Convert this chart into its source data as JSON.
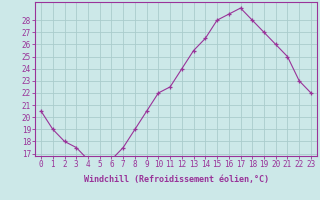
{
  "hours": [
    0,
    1,
    2,
    3,
    4,
    5,
    6,
    7,
    8,
    9,
    10,
    11,
    12,
    13,
    14,
    15,
    16,
    17,
    18,
    19,
    20,
    21,
    22,
    23
  ],
  "values": [
    20.5,
    19.0,
    18.0,
    17.5,
    16.5,
    16.5,
    16.5,
    17.5,
    19.0,
    20.5,
    22.0,
    22.5,
    24.0,
    25.5,
    26.5,
    28.0,
    28.5,
    29.0,
    28.0,
    27.0,
    26.0,
    25.0,
    23.0,
    22.0
  ],
  "line_color": "#993399",
  "marker": "+",
  "bg_color": "#cce8e8",
  "grid_color": "#aacccc",
  "xlabel": "Windchill (Refroidissement éolien,°C)",
  "ylim_min": 17,
  "ylim_max": 29,
  "xlim_min": 0,
  "xlim_max": 23,
  "yticks": [
    17,
    18,
    19,
    20,
    21,
    22,
    23,
    24,
    25,
    26,
    27,
    28
  ],
  "xticks": [
    0,
    1,
    2,
    3,
    4,
    5,
    6,
    7,
    8,
    9,
    10,
    11,
    12,
    13,
    14,
    15,
    16,
    17,
    18,
    19,
    20,
    21,
    22,
    23
  ],
  "tick_color": "#993399",
  "border_color": "#993399",
  "axis_label_color": "#993399",
  "tick_fontsize": 5.5,
  "xlabel_fontsize": 6.0,
  "linewidth": 0.8,
  "markersize": 3.5,
  "markeredgewidth": 0.9
}
